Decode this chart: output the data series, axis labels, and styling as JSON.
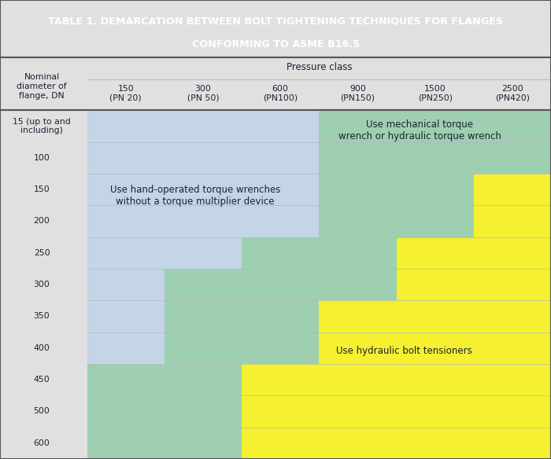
{
  "title_line1": "TABLE 1. DEMARCATION BETWEEN BOLT TIGHTENING TECHNIQUES FOR FLANGES",
  "title_line2": "CONFORMING TO ASME B16.5",
  "title_bg": "#1f5c8b",
  "title_color": "#ffffff",
  "header_bg": "#e0e0e0",
  "row_label_header": "Nominal\ndiameter of\nflange, DN",
  "pressure_class_label": "Pressure class",
  "col_labels": [
    "150\n(PN 20)",
    "300\n(PN 50)",
    "600\n(PN100)",
    "900\n(PN150)",
    "1500\n(PN250)",
    "2500\n(PN420)"
  ],
  "row_labels": [
    "15 (up to and\nincluding)",
    "100",
    "150",
    "200",
    "250",
    "300",
    "350",
    "400",
    "450",
    "500",
    "600"
  ],
  "blue_color": "#c5d5e8",
  "green_color": "#9ecfb0",
  "yellow_color": "#f5f030",
  "bg_color": "#e0e0e0",
  "blue_label": "Use hand-operated torque wrenches\nwithout a torque multiplier device",
  "green_label_top": "Use mechanical torque\nwrench or hydraulic torque wrench",
  "yellow_label": "Use hydraulic bolt tensioners",
  "text_color": "#1a2233",
  "n_rows": 11,
  "n_cols": 6,
  "blue_cols": [
    3,
    3,
    3,
    3,
    2,
    1,
    1,
    1,
    0,
    0,
    0
  ],
  "yellow_start": [
    6,
    6,
    5,
    5,
    4,
    4,
    3,
    3,
    2,
    2,
    2
  ]
}
